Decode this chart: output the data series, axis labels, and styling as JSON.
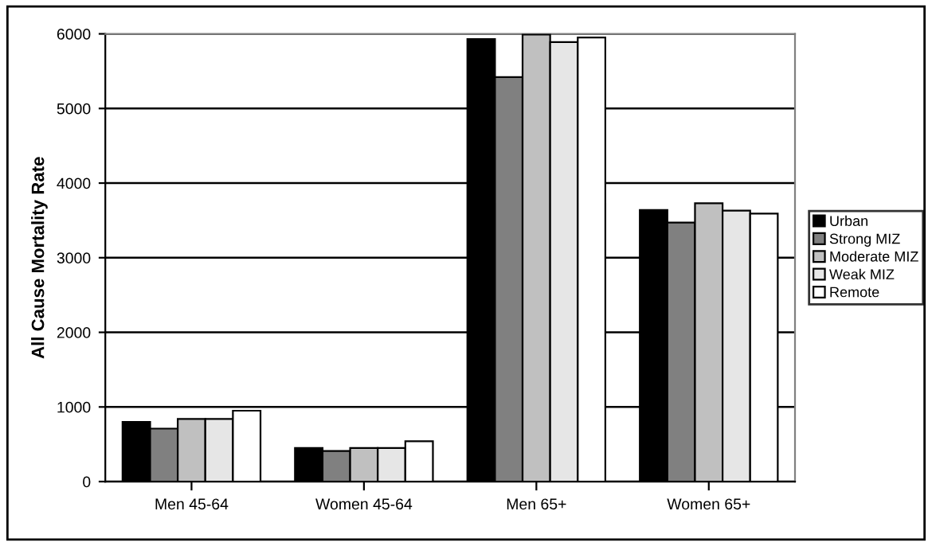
{
  "chart_data": {
    "type": "bar",
    "ylabel": "All Cause Mortality Rate",
    "categories": [
      "Men 45-64",
      "Women 45-64",
      "Men 65+",
      "Women 65+"
    ],
    "series": [
      {
        "name": "Urban",
        "color": "#000000",
        "values": [
          800,
          450,
          5930,
          3640
        ]
      },
      {
        "name": "Strong MIZ",
        "color": "#808080",
        "values": [
          710,
          410,
          5420,
          3470
        ]
      },
      {
        "name": "Moderate MIZ",
        "color": "#c0c0c0",
        "values": [
          840,
          450,
          5990,
          3730
        ]
      },
      {
        "name": "Weak MIZ",
        "color": "#e6e6e6",
        "values": [
          840,
          450,
          5890,
          3630
        ]
      },
      {
        "name": "Remote",
        "color": "#ffffff",
        "values": [
          950,
          540,
          5950,
          3590
        ]
      }
    ],
    "ylim": [
      0,
      6000
    ],
    "yticks": [
      0,
      1000,
      2000,
      3000,
      4000,
      5000,
      6000
    ],
    "grid": "y",
    "legend": "right"
  }
}
